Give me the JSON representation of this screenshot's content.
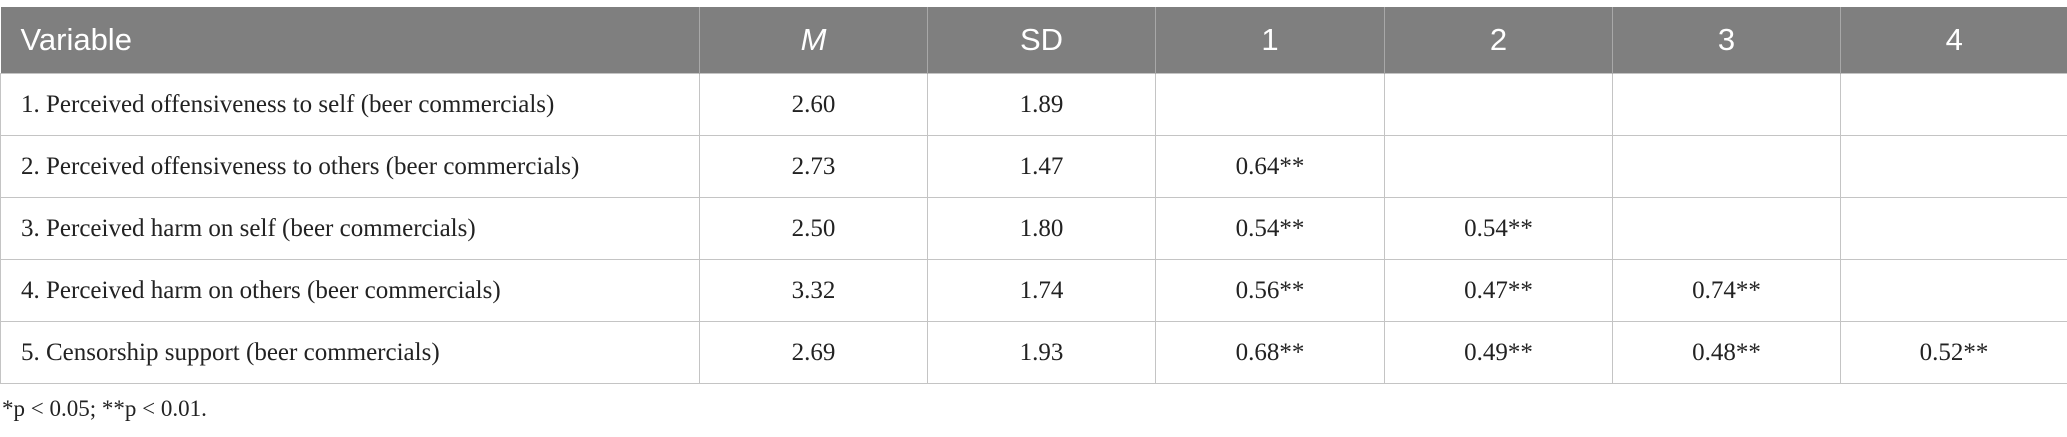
{
  "table": {
    "header": [
      "Variable",
      "M",
      "SD",
      "1",
      "2",
      "3",
      "4"
    ],
    "rows": [
      [
        "1. Perceived offensiveness to self (beer commercials)",
        "2.60",
        "1.89"
      ],
      [
        "2. Perceived offensiveness to others (beer commercials)",
        "2.73",
        "1.47",
        "0.64**"
      ],
      [
        "3. Perceived harm on self (beer commercials)",
        "2.50",
        "1.80",
        "0.54**",
        "0.54**"
      ],
      [
        "4. Perceived harm on others (beer commercials)",
        "3.32",
        "1.74",
        "0.56**",
        "0.47**",
        "0.74**"
      ],
      [
        "5. Censorship support (beer commercials)",
        "2.69",
        "1.93",
        "0.68**",
        "0.49**",
        "0.48**",
        "0.52**"
      ]
    ]
  },
  "footnote": "*p < 0.05; **p < 0.01."
}
